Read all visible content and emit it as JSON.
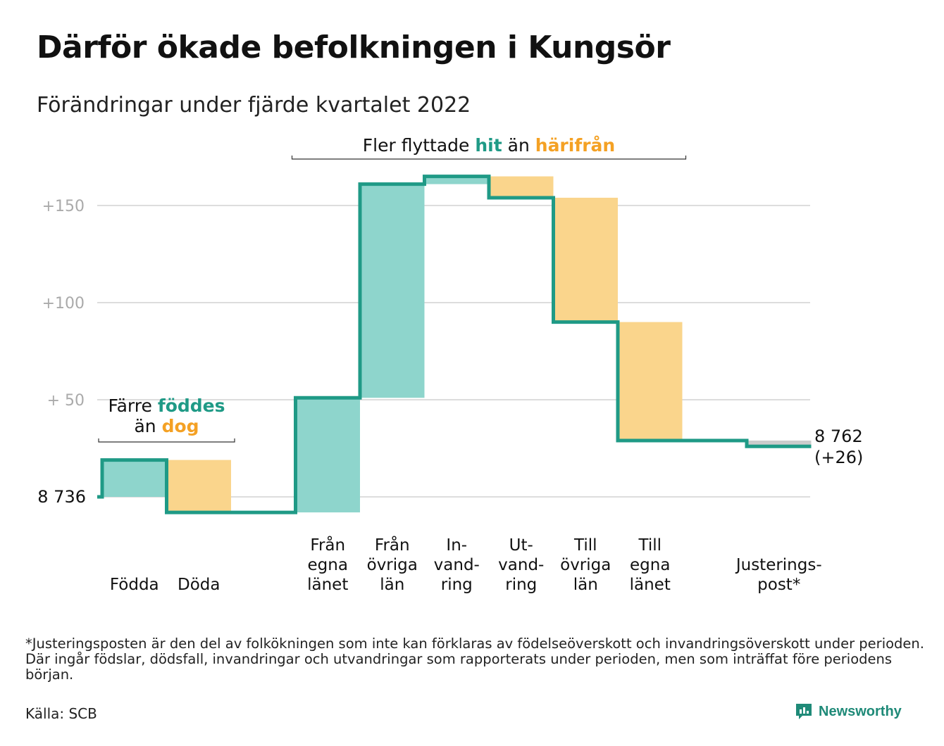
{
  "title": "Därför ökade befolkningen i Kungsör",
  "subtitle": "Förändringar under fjärde kvartalet 2022",
  "footnote": "*Justeringsposten är den del av folkökningen som inte kan förklaras av födelseöverskott och invandringsöverskott under perioden. Där ingår födslar, dödsfall, invandringar och utvandringar som rapporterats under perioden, men som inträffat före periodens början.",
  "source": "Källa: SCB",
  "brand": "Newsworthy",
  "colors": {
    "teal_line": "#1f9a86",
    "teal_fill": "#8ed5cc",
    "orange_fill": "#fad58c",
    "orange_text": "#f4a124",
    "gray_fill": "#cccccc",
    "grid": "#dddddd",
    "tick_text": "#aaaaaa"
  },
  "chart_data": {
    "type": "waterfall",
    "start_value": 8736,
    "start_label": "8 736",
    "end_label": "8 762",
    "end_change_label": "(+26)",
    "ylim": [
      -12,
      160
    ],
    "yticks": [
      {
        "value": 50,
        "label": "+ 50"
      },
      {
        "value": 100,
        "label": "+100"
      },
      {
        "value": 150,
        "label": "+150"
      }
    ],
    "grid": true,
    "steps": [
      {
        "label": [
          "Födda"
        ],
        "change": 19,
        "kind": "in"
      },
      {
        "label": [
          "Döda"
        ],
        "change": -27,
        "kind": "out"
      },
      {
        "label": [],
        "change": 0,
        "kind": "gap"
      },
      {
        "label": [
          "Från",
          "egna",
          "länet"
        ],
        "change": 59,
        "kind": "in"
      },
      {
        "label": [
          "Från",
          "övriga",
          "län"
        ],
        "change": 110,
        "kind": "in"
      },
      {
        "label": [
          "In-",
          "vand-",
          "ring"
        ],
        "change": 4,
        "kind": "in"
      },
      {
        "label": [
          "Ut-",
          "vand-",
          "ring"
        ],
        "change": -11,
        "kind": "out"
      },
      {
        "label": [
          "Till",
          "övriga",
          "län"
        ],
        "change": -64,
        "kind": "out"
      },
      {
        "label": [
          "Till",
          "egna",
          "länet"
        ],
        "change": -61,
        "kind": "out"
      },
      {
        "label": [],
        "change": 0,
        "kind": "gap"
      },
      {
        "label": [
          "Justerings-",
          "post*"
        ],
        "change": -3,
        "kind": "adj"
      }
    ],
    "annotations": [
      {
        "parts": [
          {
            "text": "Färre ",
            "style": "plain"
          },
          {
            "text": "föddes",
            "style": "teal"
          }
        ],
        "parts2": [
          {
            "text": "än ",
            "style": "plain"
          },
          {
            "text": "dog",
            "style": "orange"
          }
        ],
        "span": [
          0,
          1
        ]
      },
      {
        "parts": [
          {
            "text": "Fler flyttade ",
            "style": "plain"
          },
          {
            "text": "hit",
            "style": "teal"
          },
          {
            "text": " än ",
            "style": "plain"
          },
          {
            "text": "härifrån",
            "style": "orange"
          }
        ],
        "span": [
          3,
          8
        ]
      }
    ]
  }
}
